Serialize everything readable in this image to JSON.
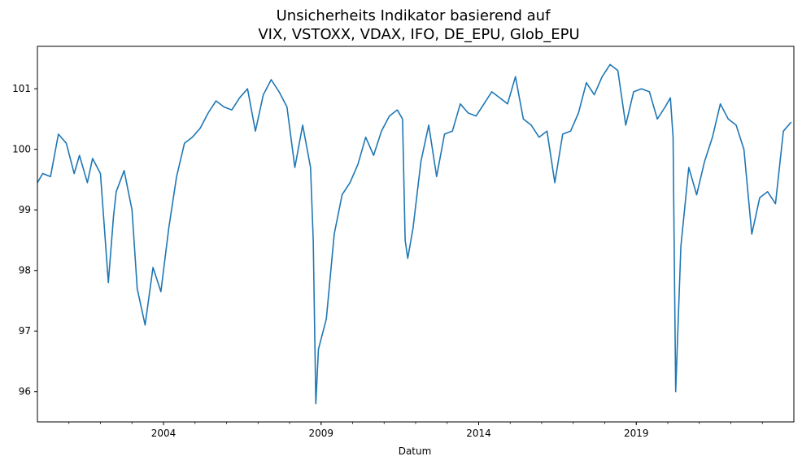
{
  "chart_data": {
    "type": "line",
    "title_line1": "Unsicherheits Indikator basierend auf",
    "title_line2": "VIX, VSTOXX, VDAX, IFO, DE_EPU, Glob_EPU",
    "xlabel": "Datum",
    "ylabel": "",
    "xlim": [
      "2000-01",
      "2024-01"
    ],
    "ylim": [
      95.5,
      101.7
    ],
    "x_ticks": [
      "2004",
      "2009",
      "2014",
      "2019"
    ],
    "y_ticks": [
      "96",
      "97",
      "98",
      "99",
      "100",
      "101"
    ],
    "grid": false,
    "legend": "none",
    "line_color": "#1f77b4",
    "series": [
      {
        "x": [
          "2000-01",
          "2000-03",
          "2000-06",
          "2000-09",
          "2000-12",
          "2001-03",
          "2001-05",
          "2001-08",
          "2001-10",
          "2002-01",
          "2002-04",
          "2002-06",
          "2002-07",
          "2002-10",
          "2003-01",
          "2003-03",
          "2003-06",
          "2003-09",
          "2003-12",
          "2004-03",
          "2004-06",
          "2004-09",
          "2004-12",
          "2005-03",
          "2005-06",
          "2005-09",
          "2005-12",
          "2006-03",
          "2006-06",
          "2006-09",
          "2006-12",
          "2007-03",
          "2007-06",
          "2007-09",
          "2007-12",
          "2008-03",
          "2008-06",
          "2008-09",
          "2008-10",
          "2008-11",
          "2008-12",
          "2009-03",
          "2009-06",
          "2009-09",
          "2009-12",
          "2010-03",
          "2010-06",
          "2010-09",
          "2010-12",
          "2011-03",
          "2011-06",
          "2011-08",
          "2011-09",
          "2011-10",
          "2011-12",
          "2012-03",
          "2012-06",
          "2012-09",
          "2012-12",
          "2013-03",
          "2013-06",
          "2013-09",
          "2013-12",
          "2014-03",
          "2014-06",
          "2014-09",
          "2014-12",
          "2015-03",
          "2015-06",
          "2015-09",
          "2015-12",
          "2016-03",
          "2016-06",
          "2016-09",
          "2016-12",
          "2017-03",
          "2017-06",
          "2017-09",
          "2017-12",
          "2018-03",
          "2018-06",
          "2018-09",
          "2018-12",
          "2019-03",
          "2019-06",
          "2019-09",
          "2019-12",
          "2020-02",
          "2020-03",
          "2020-04",
          "2020-06",
          "2020-09",
          "2020-12",
          "2021-03",
          "2021-06",
          "2021-09",
          "2021-12",
          "2022-03",
          "2022-06",
          "2022-09",
          "2022-12",
          "2023-03",
          "2023-06",
          "2023-09",
          "2023-12"
        ],
        "y": [
          99.45,
          99.6,
          99.55,
          100.25,
          100.1,
          99.6,
          99.9,
          99.45,
          99.85,
          99.6,
          97.8,
          98.9,
          99.3,
          99.65,
          99.0,
          97.7,
          97.1,
          98.05,
          97.65,
          98.7,
          99.55,
          100.1,
          100.2,
          100.35,
          100.6,
          100.8,
          100.7,
          100.65,
          100.85,
          101.0,
          100.3,
          100.9,
          101.15,
          100.95,
          100.7,
          99.7,
          100.4,
          99.7,
          98.5,
          95.8,
          96.7,
          97.2,
          98.6,
          99.25,
          99.45,
          99.75,
          100.2,
          99.9,
          100.3,
          100.55,
          100.65,
          100.5,
          98.5,
          98.2,
          98.7,
          99.8,
          100.4,
          99.55,
          100.25,
          100.3,
          100.75,
          100.6,
          100.55,
          100.75,
          100.95,
          100.85,
          100.75,
          101.2,
          100.5,
          100.4,
          100.2,
          100.3,
          99.45,
          100.25,
          100.3,
          100.6,
          101.1,
          100.9,
          101.2,
          101.4,
          101.3,
          100.4,
          100.95,
          101.0,
          100.95,
          100.5,
          100.7,
          100.85,
          100.2,
          96.0,
          98.4,
          99.7,
          99.25,
          99.8,
          100.2,
          100.75,
          100.5,
          100.4,
          100.0,
          98.6,
          99.2,
          99.3,
          99.1,
          100.3,
          100.45
        ]
      }
    ]
  }
}
